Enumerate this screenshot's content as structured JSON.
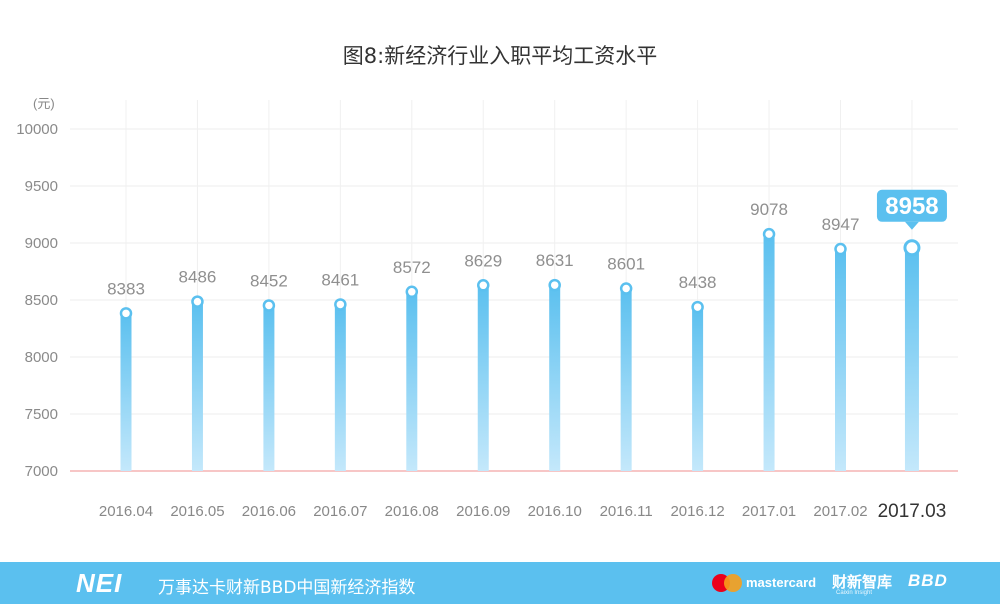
{
  "chart_data": {
    "type": "bar",
    "title": "图8:新经济行业入职平均工资水平",
    "unit": "(元)",
    "categories": [
      "2016.04",
      "2016.05",
      "2016.06",
      "2016.07",
      "2016.08",
      "2016.09",
      "2016.10",
      "2016.11",
      "2016.12",
      "2017.01",
      "2017.02",
      "2017.03"
    ],
    "values": [
      8383,
      8486,
      8452,
      8461,
      8572,
      8629,
      8631,
      8601,
      8438,
      9078,
      8947,
      8958
    ],
    "yticks": [
      "10000",
      "9500",
      "9000",
      "8500",
      "8000",
      "7500",
      "7000"
    ],
    "ylim": [
      7000,
      10000
    ],
    "grid": true,
    "highlight_index": 11,
    "bar_gradient": [
      "#5bc0ef",
      "#bfe6fa"
    ],
    "baseline_color": "#f2a3a3"
  },
  "footer": {
    "logo": "NEI",
    "name": "万事达卡财新BBD中国新经济指数",
    "mastercard": "mastercard",
    "caixin": "财新智库",
    "caixin_sub": "Caixin Insight",
    "bbd": "BBD",
    "background": "#5bc0ef"
  }
}
